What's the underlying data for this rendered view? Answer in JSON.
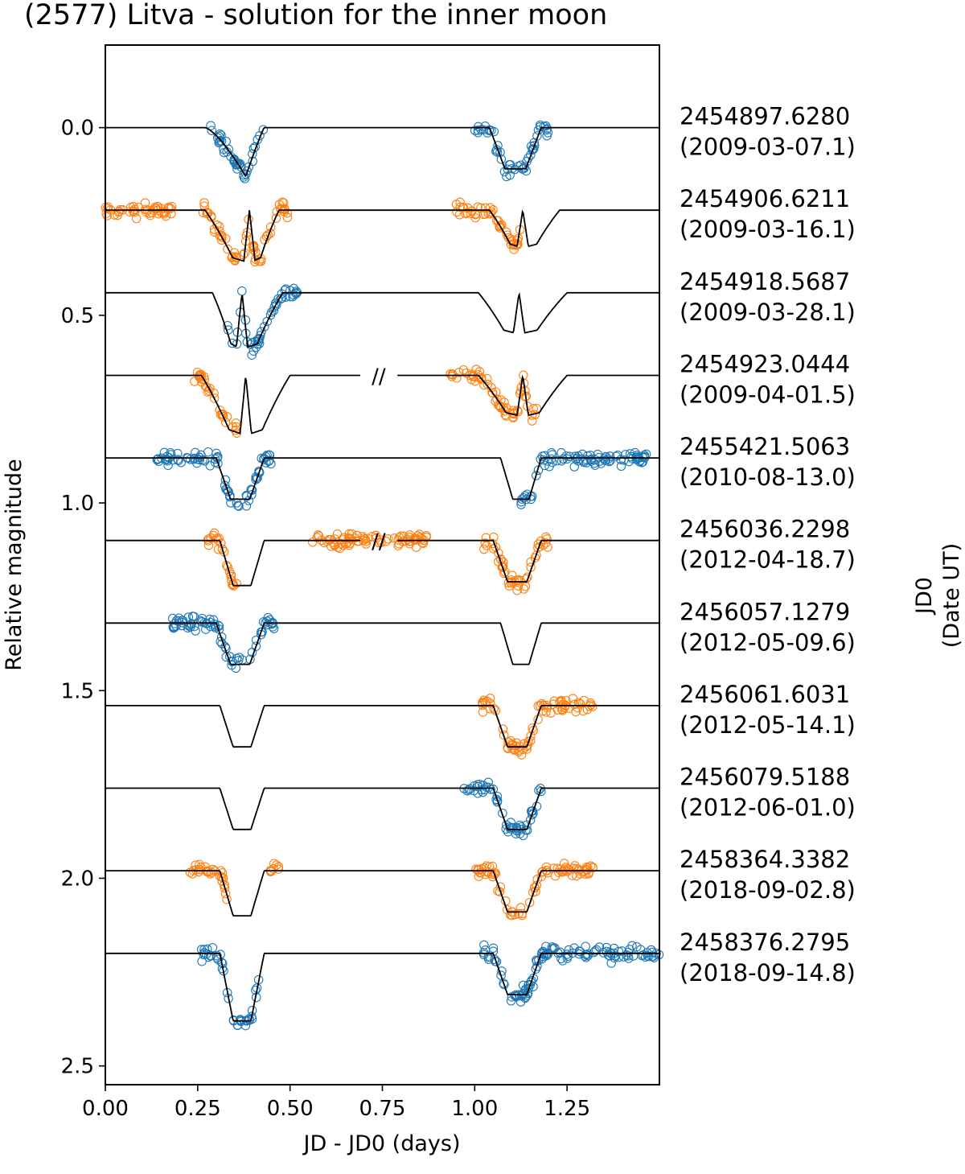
{
  "chart_data": {
    "type": "scatter",
    "title": "(2577) Litva - solution for the inner moon",
    "xlabel": "JD - JD0 (days)",
    "ylabel": "Relative magnitude",
    "right_label": [
      "JD0",
      "(Date UT)"
    ],
    "xlim": [
      0.0,
      1.5
    ],
    "ylim": [
      2.55,
      -0.22
    ],
    "y_inverted": true,
    "x_ticks": [
      0.0,
      0.25,
      0.5,
      0.75,
      1.0,
      1.25
    ],
    "x_tick_labels": [
      "0.00",
      "0.25",
      "0.50",
      "0.75",
      "1.00",
      "1.25"
    ],
    "y_ticks": [
      0.0,
      0.5,
      1.0,
      1.5,
      2.0,
      2.5
    ],
    "y_tick_labels": [
      "0.0",
      "0.5",
      "1.0",
      "1.5",
      "2.0",
      "2.5"
    ],
    "break_marker": "//",
    "colors": {
      "blue": "#1f77b4",
      "orange": "#ff7f0e",
      "model": "#000000"
    },
    "series": [
      {
        "jd0": "2454897.6280",
        "date": "(2009-03-07.1)",
        "offset": 0.0,
        "color": "blue",
        "model": {
          "first": {
            "type": "v",
            "start": 0.27,
            "end": 0.43,
            "bottom": 0.38,
            "depth": 0.13
          },
          "second": {
            "type": "flat",
            "start": 1.04,
            "end": 1.18,
            "depth": 0.11
          }
        },
        "obs": [
          [
            0.27,
            0.43
          ],
          [
            1.0,
            1.2
          ]
        ],
        "break": false
      },
      {
        "jd0": "2454906.6211",
        "date": "(2009-03-16.1)",
        "offset": 0.22,
        "color": "orange",
        "model": {
          "first": {
            "type": "w",
            "start": 0.27,
            "end": 0.47,
            "center": 0.39,
            "depth": 0.14
          },
          "second": {
            "type": "w",
            "start": 1.04,
            "end": 1.23,
            "center": 1.13,
            "depth": 0.1
          }
        },
        "obs": [
          [
            0.0,
            0.18
          ],
          [
            0.26,
            0.5
          ],
          [
            0.95,
            1.13
          ]
        ],
        "break": false
      },
      {
        "jd0": "2454918.5687",
        "date": "(2009-03-28.1)",
        "offset": 0.44,
        "color": "blue",
        "model": {
          "first": {
            "type": "w",
            "start": 0.29,
            "end": 0.48,
            "center": 0.37,
            "depth": 0.15
          },
          "second": {
            "type": "w",
            "start": 1.01,
            "end": 1.25,
            "center": 1.12,
            "depth": 0.11
          }
        },
        "obs": [
          [
            0.33,
            0.52
          ]
        ],
        "break": false
      },
      {
        "jd0": "2454923.0444",
        "date": "(2009-04-01.5)",
        "offset": 0.66,
        "color": "orange",
        "model": {
          "first": {
            "type": "w",
            "start": 0.26,
            "end": 0.5,
            "center": 0.38,
            "depth": 0.16
          },
          "second": {
            "type": "w",
            "start": 1.01,
            "end": 1.25,
            "center": 1.13,
            "depth": 0.11
          }
        },
        "obs": [
          [
            0.24,
            0.36
          ],
          [
            0.93,
            1.17
          ]
        ],
        "break": true
      },
      {
        "jd0": "2455421.5063",
        "date": "(2010-08-13.0)",
        "offset": 0.88,
        "color": "blue",
        "model": {
          "first": {
            "type": "flat",
            "start": 0.3,
            "end": 0.43,
            "depth": 0.11
          },
          "second": {
            "type": "flat",
            "start": 1.07,
            "end": 1.18,
            "depth": 0.11
          }
        },
        "obs": [
          [
            0.14,
            0.45
          ],
          [
            1.12,
            1.47
          ]
        ],
        "break": false
      },
      {
        "jd0": "2456036.2298",
        "date": "(2012-04-18.7)",
        "offset": 1.1,
        "color": "orange",
        "model": {
          "first": {
            "type": "flat",
            "start": 0.31,
            "end": 0.43,
            "depth": 0.12
          },
          "second": {
            "type": "flat",
            "start": 1.05,
            "end": 1.18,
            "depth": 0.11
          }
        },
        "obs": [
          [
            0.27,
            0.36
          ],
          [
            0.56,
            0.87
          ],
          [
            1.02,
            1.2
          ]
        ],
        "break": true
      },
      {
        "jd0": "2456057.1279",
        "date": "(2012-05-09.6)",
        "offset": 1.32,
        "color": "blue",
        "model": {
          "first": {
            "type": "flat",
            "start": 0.3,
            "end": 0.43,
            "depth": 0.11
          },
          "second": {
            "type": "flat",
            "start": 1.07,
            "end": 1.18,
            "depth": 0.11
          }
        },
        "obs": [
          [
            0.17,
            0.46
          ]
        ],
        "break": false
      },
      {
        "jd0": "2456061.6031",
        "date": "(2012-05-14.1)",
        "offset": 1.54,
        "color": "orange",
        "model": {
          "first": {
            "type": "flat",
            "start": 0.31,
            "end": 0.43,
            "depth": 0.11
          },
          "second": {
            "type": "flat",
            "start": 1.05,
            "end": 1.18,
            "depth": 0.11
          }
        },
        "obs": [
          [
            1.02,
            1.33
          ]
        ],
        "break": false
      },
      {
        "jd0": "2456079.5188",
        "date": "(2012-06-01.0)",
        "offset": 1.76,
        "color": "blue",
        "model": {
          "first": {
            "type": "flat",
            "start": 0.31,
            "end": 0.43,
            "depth": 0.11
          },
          "second": {
            "type": "flat",
            "start": 1.05,
            "end": 1.18,
            "depth": 0.11
          }
        },
        "obs": [
          [
            0.97,
            1.18
          ]
        ],
        "break": false
      },
      {
        "jd0": "2458364.3382",
        "date": "(2018-09-02.8)",
        "offset": 1.98,
        "color": "orange",
        "model": {
          "first": {
            "type": "flat",
            "start": 0.31,
            "end": 0.43,
            "depth": 0.12
          },
          "second": {
            "type": "flat",
            "start": 1.05,
            "end": 1.18,
            "depth": 0.11
          }
        },
        "obs": [
          [
            0.22,
            0.33
          ],
          [
            0.44,
            0.47
          ],
          [
            1.0,
            1.32
          ]
        ],
        "break": false
      },
      {
        "jd0": "2458376.2795",
        "date": "(2018-09-14.8)",
        "offset": 2.2,
        "color": "blue",
        "model": {
          "first": {
            "type": "flat",
            "start": 0.31,
            "end": 0.43,
            "depth": 0.18
          },
          "second": {
            "type": "flat",
            "start": 1.05,
            "end": 1.18,
            "depth": 0.11
          }
        },
        "obs": [
          [
            0.26,
            0.42
          ],
          [
            1.02,
            1.5
          ]
        ],
        "break": false
      }
    ]
  }
}
